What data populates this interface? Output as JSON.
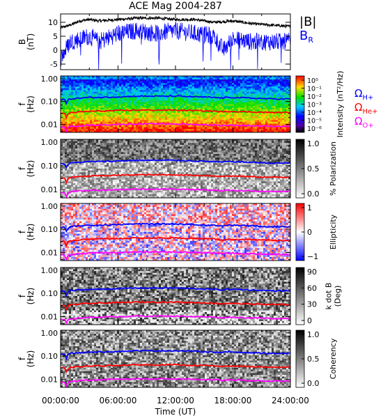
{
  "chart_data": {
    "type": "line",
    "title": "ACE Mag 2004-287",
    "x_axis": {
      "label": "Time (UT)",
      "ticks": [
        "00:00:00",
        "06:00:00",
        "12:00:00",
        "18:00:00",
        "24:00:00"
      ],
      "range_hours": [
        0,
        24
      ]
    },
    "panels": [
      {
        "kind": "timeseries",
        "ylabel": [
          "B",
          "(nT)"
        ],
        "ylim": [
          -7,
          13
        ],
        "yticks": [
          "10",
          "5",
          "0",
          "-5"
        ],
        "ytick_values": [
          10,
          5,
          0,
          -5
        ],
        "legend": [
          {
            "label": "|B|",
            "color": "#000000"
          },
          {
            "label": "B",
            "sub": "R",
            "color": "#0000ff"
          }
        ],
        "series": [
          {
            "name": "|B|",
            "color": "#000000",
            "x_hours": [
              0,
              1,
              2,
              3,
              4,
              6,
              8,
              10,
              12,
              14,
              16,
              18,
              20,
              22,
              24
            ],
            "values": [
              8,
              9,
              10.5,
              11,
              10.5,
              11,
              11.5,
              11.5,
              11,
              11,
              10,
              10.5,
              9.5,
              9,
              8.5
            ]
          },
          {
            "name": "BR",
            "color": "#0000ff",
            "x_hours": [
              0,
              0.5,
              1,
              2,
              3,
              4,
              6,
              8,
              10,
              12,
              14,
              16,
              17,
              18,
              20,
              22,
              24
            ],
            "values": [
              -3,
              0,
              3,
              4,
              5,
              3,
              6,
              7,
              6,
              7,
              6,
              5,
              0,
              4,
              3,
              3,
              3
            ]
          }
        ]
      },
      {
        "kind": "spectrogram",
        "colormap": "rainbow",
        "ylabel": [
          "f",
          "(Hz)"
        ],
        "yticks": [
          "1.00",
          "0.10",
          "0.01"
        ],
        "colorbar_label": "Intensity (nT²/Hz)",
        "colorbar_ticks": [
          "10⁰",
          "10⁻¹",
          "10⁻²",
          "10⁻³",
          "10⁻⁴",
          "10⁻⁵",
          "10⁻⁶"
        ],
        "legend": [
          {
            "label": "Ω",
            "sub": "H+",
            "color": "#0000ff"
          },
          {
            "label": "Ω",
            "sub": "He+",
            "color": "#ff0000"
          },
          {
            "label": "Ω",
            "sub": "O+",
            "color": "#ff00ff"
          }
        ]
      },
      {
        "kind": "spectrogram",
        "colormap": "gray",
        "ylabel": [
          "f",
          "(Hz)"
        ],
        "yticks": [
          "1.00",
          "0.10",
          "0.01"
        ],
        "colorbar_label": "% Polarization",
        "colorbar_ticks": [
          "1.0",
          "0.5",
          "0.0"
        ]
      },
      {
        "kind": "spectrogram",
        "colormap": "bluewhitered",
        "ylabel": [
          "f",
          "(Hz)"
        ],
        "yticks": [
          "1.00",
          "0.10",
          "0.01"
        ],
        "colorbar_label": "Ellipticity",
        "colorbar_ticks": [
          "1",
          "0",
          "−1"
        ]
      },
      {
        "kind": "spectrogram",
        "colormap": "gray",
        "ylabel": [
          "f",
          "(Hz)"
        ],
        "yticks": [
          "1.00",
          "0.10",
          "0.01"
        ],
        "colorbar_label": "k dot B (Deg)",
        "colorbar_label_lines": [
          "k dot B",
          "(Deg)"
        ],
        "colorbar_ticks": [
          "90",
          "60",
          "30",
          "0"
        ]
      },
      {
        "kind": "spectrogram",
        "colormap": "gray",
        "ylabel": [
          "f",
          "(Hz)"
        ],
        "yticks": [
          "1.00",
          "0.10",
          "0.01"
        ],
        "colorbar_label": "Coherency",
        "colorbar_ticks": [
          "1.0",
          "0.5",
          "0.0"
        ]
      }
    ],
    "gyrofrequency_lines": [
      {
        "name": "ΩH+",
        "color": "#0000ff",
        "x_hours": [
          0,
          0.4,
          0.6,
          0.8,
          1,
          2,
          3,
          4,
          6,
          8,
          10,
          12,
          14,
          16,
          17,
          17.2,
          18,
          20,
          22,
          24
        ],
        "values_hz": [
          0.12,
          0.13,
          0.08,
          0.12,
          0.13,
          0.14,
          0.15,
          0.15,
          0.16,
          0.17,
          0.17,
          0.17,
          0.16,
          0.15,
          0.14,
          0.15,
          0.15,
          0.14,
          0.13,
          0.13
        ]
      },
      {
        "name": "ΩHe+",
        "color": "#ff0000",
        "x_hours": [
          0,
          0.4,
          0.6,
          0.8,
          1,
          2,
          3,
          4,
          6,
          8,
          10,
          12,
          14,
          16,
          17,
          17.2,
          18,
          20,
          22,
          24
        ],
        "values_hz": [
          0.029,
          0.032,
          0.02,
          0.03,
          0.032,
          0.035,
          0.037,
          0.038,
          0.04,
          0.042,
          0.042,
          0.042,
          0.04,
          0.038,
          0.035,
          0.037,
          0.037,
          0.035,
          0.033,
          0.033
        ]
      },
      {
        "name": "ΩO+",
        "color": "#ff00ff",
        "x_hours": [
          0,
          0.4,
          0.6,
          0.8,
          1,
          2,
          3,
          4,
          6,
          8,
          10,
          12,
          14,
          16,
          17,
          17.2,
          18,
          20,
          22,
          24
        ],
        "values_hz": [
          0.0075,
          0.008,
          0.005,
          0.0075,
          0.008,
          0.0088,
          0.0093,
          0.0095,
          0.01,
          0.0105,
          0.0105,
          0.0105,
          0.01,
          0.0095,
          0.0088,
          0.0093,
          0.0093,
          0.0088,
          0.0083,
          0.0083
        ]
      }
    ]
  }
}
